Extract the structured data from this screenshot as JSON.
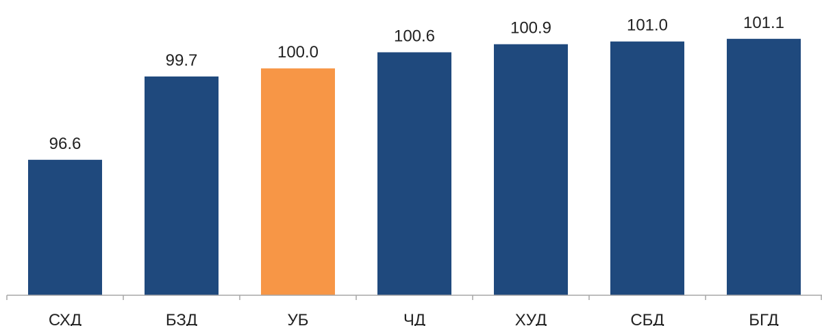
{
  "chart_data": {
    "type": "bar",
    "categories": [
      "СХД",
      "БЗД",
      "УБ",
      "ЧД",
      "ХУД",
      "СБД",
      "БГД"
    ],
    "values": [
      96.6,
      99.7,
      100.0,
      100.6,
      100.9,
      101.0,
      101.1
    ],
    "value_labels": [
      "96.6",
      "99.7",
      "100.0",
      "100.6",
      "100.9",
      "101.0",
      "101.1"
    ],
    "colors": [
      "#1f497d",
      "#1f497d",
      "#f79646",
      "#1f497d",
      "#1f497d",
      "#1f497d",
      "#1f497d"
    ],
    "title": "",
    "xlabel": "",
    "ylabel": "",
    "ylim": [
      91.56,
      101.4
    ],
    "grid": false,
    "legend": "none"
  },
  "colors": {
    "primary_bar": "#1f497d",
    "highlight_bar": "#f79646",
    "axis": "#a6a6a6"
  }
}
